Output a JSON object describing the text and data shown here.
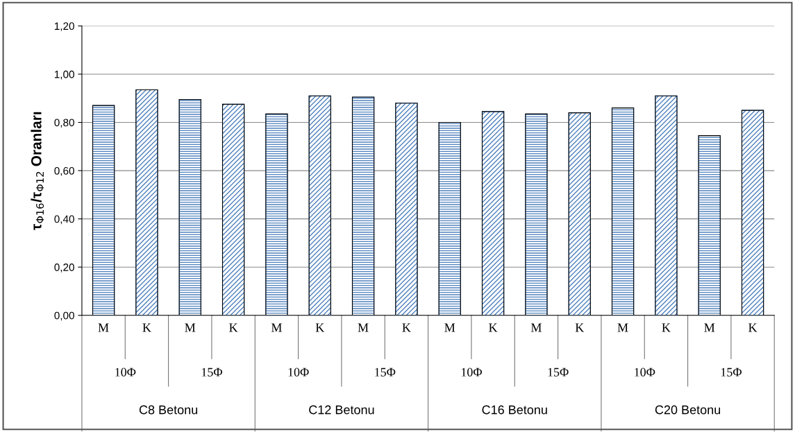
{
  "chart_data": {
    "type": "bar",
    "ylabel": "τ$_{Φ16}$/τ$_{Φ12}$ Oranları",
    "categories": [
      "M",
      "K",
      "M",
      "K",
      "M",
      "K",
      "M",
      "K",
      "M",
      "K",
      "M",
      "K",
      "M",
      "K",
      "M",
      "K"
    ],
    "values": [
      0.87,
      0.935,
      0.895,
      0.875,
      0.835,
      0.91,
      0.905,
      0.88,
      0.8,
      0.845,
      0.835,
      0.84,
      0.86,
      0.91,
      0.745,
      0.85
    ],
    "colors": [
      "#4f81bd",
      "#4f81bd",
      "#4f81bd",
      "#4f81bd",
      "#4f81bd",
      "#4f81bd",
      "#4f81bd",
      "#4f81bd",
      "#4f81bd",
      "#4f81bd",
      "#4f81bd",
      "#4f81bd",
      "#4f81bd",
      "#4f81bd",
      "#4f81bd",
      "#4f81bd"
    ],
    "ylim": [
      0,
      1.2
    ],
    "yticks": [
      {
        "value": 0,
        "label": "0,00"
      },
      {
        "value": 0.2,
        "label": "0,20"
      },
      {
        "value": 0.4,
        "label": "0,40"
      },
      {
        "value": 0.6,
        "label": "0,60"
      },
      {
        "value": 0.8,
        "label": "0,80"
      },
      {
        "value": 1.0,
        "label": "1,00"
      },
      {
        "value": 1.2,
        "label": "1,20"
      }
    ],
    "grid": "y",
    "annotations": [
      "10Φ",
      "15Φ",
      "10Φ",
      "15Φ",
      "10Φ",
      "15Φ",
      "10Φ",
      "15Φ",
      "C8 Betonu",
      "C12 Betonu",
      "C16 Betonu",
      "C20 Betonu"
    ]
  }
}
